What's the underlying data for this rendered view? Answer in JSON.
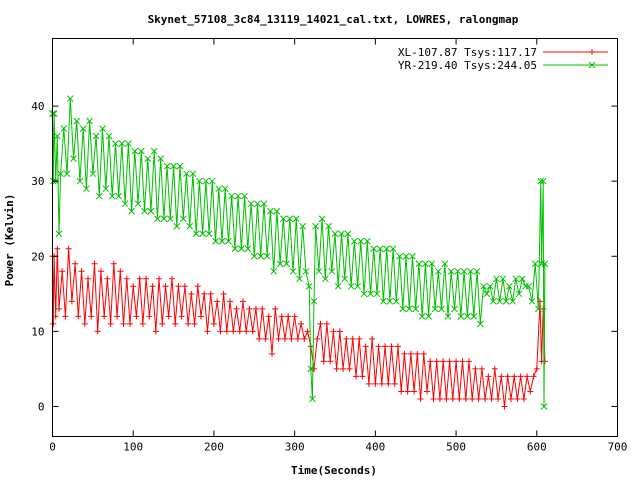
{
  "chart_data": {
    "type": "line",
    "title": "Skynet_57108_3c84_13119_14021_cal.txt, LOWRES, ralongmap",
    "xlabel": "Time(Seconds)",
    "ylabel": "Power (Kelvin)",
    "xlim": [
      0,
      700
    ],
    "ylim": [
      -4,
      49
    ],
    "xticks": [
      0,
      100,
      200,
      300,
      400,
      500,
      600,
      700
    ],
    "yticks": [
      0,
      10,
      20,
      30,
      40
    ],
    "legend": "top-right",
    "grid": false,
    "series": [
      {
        "name": "XL-107.87 Tsys:117.17",
        "color": "#ff0000",
        "marker": "plus",
        "points": [
          [
            0,
            20
          ],
          [
            1,
            11
          ],
          [
            2,
            20
          ],
          [
            4,
            12
          ],
          [
            6,
            21
          ],
          [
            8,
            13
          ],
          [
            12,
            18
          ],
          [
            16,
            12
          ],
          [
            20,
            21
          ],
          [
            24,
            14
          ],
          [
            28,
            19
          ],
          [
            32,
            12
          ],
          [
            36,
            18
          ],
          [
            40,
            11
          ],
          [
            44,
            17
          ],
          [
            48,
            12
          ],
          [
            52,
            19
          ],
          [
            56,
            10
          ],
          [
            60,
            18
          ],
          [
            64,
            12
          ],
          [
            68,
            17
          ],
          [
            72,
            11
          ],
          [
            76,
            19
          ],
          [
            80,
            12
          ],
          [
            84,
            18
          ],
          [
            88,
            11
          ],
          [
            92,
            17
          ],
          [
            96,
            11
          ],
          [
            100,
            16
          ],
          [
            104,
            12
          ],
          [
            108,
            17
          ],
          [
            112,
            11
          ],
          [
            116,
            17
          ],
          [
            120,
            12
          ],
          [
            124,
            16
          ],
          [
            128,
            10
          ],
          [
            132,
            17
          ],
          [
            136,
            11
          ],
          [
            140,
            16
          ],
          [
            144,
            12
          ],
          [
            148,
            17
          ],
          [
            152,
            11
          ],
          [
            156,
            16
          ],
          [
            160,
            12
          ],
          [
            164,
            16
          ],
          [
            168,
            11
          ],
          [
            172,
            15
          ],
          [
            176,
            11
          ],
          [
            180,
            16
          ],
          [
            184,
            12
          ],
          [
            188,
            15
          ],
          [
            192,
            10
          ],
          [
            196,
            15
          ],
          [
            200,
            11
          ],
          [
            204,
            14
          ],
          [
            208,
            10
          ],
          [
            212,
            15
          ],
          [
            216,
            10
          ],
          [
            220,
            14
          ],
          [
            224,
            10
          ],
          [
            228,
            13
          ],
          [
            232,
            10
          ],
          [
            236,
            14
          ],
          [
            240,
            10
          ],
          [
            244,
            13
          ],
          [
            248,
            10
          ],
          [
            252,
            13
          ],
          [
            256,
            9
          ],
          [
            260,
            13
          ],
          [
            264,
            9
          ],
          [
            268,
            12
          ],
          [
            272,
            7
          ],
          [
            276,
            13
          ],
          [
            280,
            9
          ],
          [
            284,
            12
          ],
          [
            288,
            9
          ],
          [
            292,
            12
          ],
          [
            296,
            9
          ],
          [
            300,
            12
          ],
          [
            304,
            9
          ],
          [
            308,
            11
          ],
          [
            312,
            9
          ],
          [
            316,
            10
          ],
          [
            320,
            8
          ],
          [
            324,
            5
          ],
          [
            328,
            9
          ],
          [
            332,
            11
          ],
          [
            336,
            6
          ],
          [
            340,
            11
          ],
          [
            344,
            6
          ],
          [
            348,
            10
          ],
          [
            352,
            5
          ],
          [
            356,
            10
          ],
          [
            360,
            5
          ],
          [
            364,
            9
          ],
          [
            368,
            5
          ],
          [
            372,
            9
          ],
          [
            376,
            4
          ],
          [
            380,
            9
          ],
          [
            384,
            4
          ],
          [
            388,
            8
          ],
          [
            392,
            3
          ],
          [
            396,
            9
          ],
          [
            400,
            3
          ],
          [
            404,
            8
          ],
          [
            408,
            3
          ],
          [
            412,
            8
          ],
          [
            416,
            3
          ],
          [
            420,
            8
          ],
          [
            424,
            3
          ],
          [
            428,
            8
          ],
          [
            432,
            2
          ],
          [
            436,
            7
          ],
          [
            440,
            2
          ],
          [
            444,
            7
          ],
          [
            448,
            2
          ],
          [
            452,
            7
          ],
          [
            456,
            1
          ],
          [
            460,
            7
          ],
          [
            464,
            2
          ],
          [
            468,
            6
          ],
          [
            472,
            1
          ],
          [
            476,
            6
          ],
          [
            480,
            1
          ],
          [
            484,
            6
          ],
          [
            488,
            1
          ],
          [
            492,
            6
          ],
          [
            496,
            1
          ],
          [
            500,
            6
          ],
          [
            504,
            1
          ],
          [
            508,
            6
          ],
          [
            512,
            1
          ],
          [
            516,
            6
          ],
          [
            520,
            1
          ],
          [
            524,
            5
          ],
          [
            528,
            1
          ],
          [
            532,
            5
          ],
          [
            536,
            1
          ],
          [
            540,
            4
          ],
          [
            544,
            1
          ],
          [
            548,
            5
          ],
          [
            552,
            1
          ],
          [
            556,
            4
          ],
          [
            560,
            0
          ],
          [
            564,
            4
          ],
          [
            568,
            1
          ],
          [
            572,
            4
          ],
          [
            576,
            1
          ],
          [
            580,
            4
          ],
          [
            584,
            1
          ],
          [
            588,
            4
          ],
          [
            592,
            2
          ],
          [
            596,
            4
          ],
          [
            600,
            5
          ],
          [
            604,
            14
          ],
          [
            606,
            6
          ],
          [
            608,
            13
          ],
          [
            610,
            6
          ]
        ]
      },
      {
        "name": "YR-219.40 Tsys:244.05",
        "color": "#00c000",
        "marker": "cross",
        "points": [
          [
            0,
            39
          ],
          [
            1,
            30
          ],
          [
            2,
            39
          ],
          [
            4,
            30
          ],
          [
            6,
            36
          ],
          [
            8,
            23
          ],
          [
            10,
            31
          ],
          [
            14,
            37
          ],
          [
            18,
            31
          ],
          [
            22,
            41
          ],
          [
            26,
            33
          ],
          [
            30,
            38
          ],
          [
            34,
            30
          ],
          [
            38,
            37
          ],
          [
            42,
            29
          ],
          [
            46,
            38
          ],
          [
            50,
            31
          ],
          [
            54,
            36
          ],
          [
            58,
            28
          ],
          [
            62,
            37
          ],
          [
            66,
            29
          ],
          [
            70,
            36
          ],
          [
            74,
            28
          ],
          [
            78,
            35
          ],
          [
            82,
            28
          ],
          [
            86,
            35
          ],
          [
            90,
            27
          ],
          [
            94,
            35
          ],
          [
            98,
            26
          ],
          [
            102,
            34
          ],
          [
            106,
            27
          ],
          [
            110,
            34
          ],
          [
            114,
            26
          ],
          [
            118,
            33
          ],
          [
            122,
            26
          ],
          [
            126,
            34
          ],
          [
            130,
            25
          ],
          [
            134,
            33
          ],
          [
            138,
            25
          ],
          [
            142,
            32
          ],
          [
            146,
            25
          ],
          [
            150,
            32
          ],
          [
            154,
            24
          ],
          [
            158,
            32
          ],
          [
            162,
            25
          ],
          [
            166,
            31
          ],
          [
            170,
            24
          ],
          [
            174,
            31
          ],
          [
            178,
            23
          ],
          [
            182,
            30
          ],
          [
            186,
            23
          ],
          [
            190,
            30
          ],
          [
            194,
            23
          ],
          [
            198,
            30
          ],
          [
            202,
            22
          ],
          [
            206,
            29
          ],
          [
            210,
            22
          ],
          [
            214,
            29
          ],
          [
            218,
            22
          ],
          [
            222,
            28
          ],
          [
            226,
            21
          ],
          [
            230,
            28
          ],
          [
            234,
            21
          ],
          [
            238,
            28
          ],
          [
            242,
            21
          ],
          [
            246,
            27
          ],
          [
            250,
            20
          ],
          [
            254,
            27
          ],
          [
            258,
            20
          ],
          [
            262,
            27
          ],
          [
            266,
            20
          ],
          [
            270,
            26
          ],
          [
            274,
            18
          ],
          [
            278,
            26
          ],
          [
            282,
            19
          ],
          [
            286,
            25
          ],
          [
            290,
            19
          ],
          [
            294,
            25
          ],
          [
            298,
            18
          ],
          [
            302,
            25
          ],
          [
            306,
            17
          ],
          [
            310,
            24
          ],
          [
            314,
            18
          ],
          [
            318,
            16
          ],
          [
            320,
            5
          ],
          [
            322,
            1
          ],
          [
            324,
            14
          ],
          [
            326,
            24
          ],
          [
            330,
            18
          ],
          [
            334,
            25
          ],
          [
            338,
            17
          ],
          [
            342,
            24
          ],
          [
            346,
            18
          ],
          [
            350,
            23
          ],
          [
            354,
            16
          ],
          [
            358,
            23
          ],
          [
            362,
            17
          ],
          [
            366,
            23
          ],
          [
            370,
            16
          ],
          [
            374,
            22
          ],
          [
            378,
            16
          ],
          [
            382,
            22
          ],
          [
            386,
            15
          ],
          [
            390,
            22
          ],
          [
            394,
            15
          ],
          [
            398,
            21
          ],
          [
            402,
            15
          ],
          [
            406,
            21
          ],
          [
            410,
            14
          ],
          [
            414,
            21
          ],
          [
            418,
            14
          ],
          [
            422,
            21
          ],
          [
            426,
            14
          ],
          [
            430,
            20
          ],
          [
            434,
            13
          ],
          [
            438,
            20
          ],
          [
            442,
            13
          ],
          [
            446,
            20
          ],
          [
            450,
            13
          ],
          [
            454,
            19
          ],
          [
            458,
            12
          ],
          [
            462,
            19
          ],
          [
            466,
            12
          ],
          [
            470,
            19
          ],
          [
            474,
            13
          ],
          [
            478,
            18
          ],
          [
            482,
            13
          ],
          [
            486,
            19
          ],
          [
            490,
            12
          ],
          [
            494,
            18
          ],
          [
            498,
            13
          ],
          [
            502,
            18
          ],
          [
            506,
            12
          ],
          [
            510,
            18
          ],
          [
            514,
            12
          ],
          [
            518,
            18
          ],
          [
            522,
            12
          ],
          [
            526,
            18
          ],
          [
            530,
            11
          ],
          [
            534,
            16
          ],
          [
            538,
            15
          ],
          [
            542,
            16
          ],
          [
            546,
            14
          ],
          [
            550,
            17
          ],
          [
            554,
            14
          ],
          [
            558,
            17
          ],
          [
            562,
            14
          ],
          [
            566,
            16
          ],
          [
            570,
            14
          ],
          [
            574,
            17
          ],
          [
            578,
            15
          ],
          [
            582,
            17
          ],
          [
            586,
            16
          ],
          [
            590,
            16
          ],
          [
            594,
            14
          ],
          [
            598,
            19
          ],
          [
            602,
            13
          ],
          [
            605,
            30
          ],
          [
            606,
            19
          ],
          [
            608,
            30
          ],
          [
            609,
            0
          ],
          [
            610,
            19
          ]
        ]
      }
    ]
  }
}
